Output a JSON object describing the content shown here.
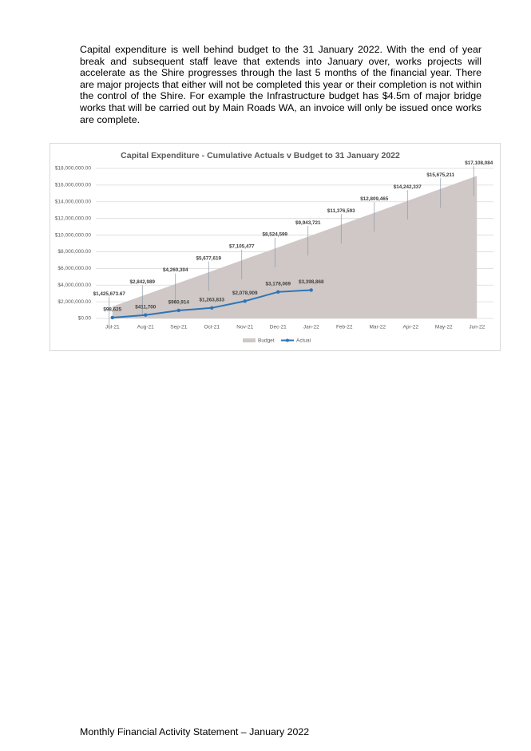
{
  "paragraph": "Capital expenditure is well behind budget to the 31 January 2022. With the end of year break and subsequent staff leave that extends into January over, works projects will accelerate as the Shire progresses through the last 5 months of the financial year. There are major projects that either will not be completed this year or their completion is not within the control of the Shire. For example the Infrastructure budget has $4.5m of major bridge works that will be carried out by Main Roads WA, an invoice will only be issued once works are complete.",
  "chart_data": {
    "type": "area",
    "title": "Capital Expenditure - Cumulative Actuals v Budget to 31 January 2022",
    "categories": [
      "Jul-21",
      "Aug-21",
      "Sep-21",
      "Oct-21",
      "Nov-21",
      "Dec-21",
      "Jan-22",
      "Feb-22",
      "Mar-22",
      "Apr-22",
      "May-22",
      "Jun-22"
    ],
    "series": [
      {
        "name": "Budget",
        "type": "area",
        "color": "#cfc8c7",
        "values": [
          1425673.67,
          2842989,
          4260304,
          5677619,
          7105477,
          8524599,
          9943721,
          11376593,
          12809465,
          14242337,
          15675211,
          17108084
        ],
        "value_labels": [
          "$1,425,673.67",
          "$2,842,989",
          "$4,260,304",
          "$5,677,619",
          "$7,105,477",
          "$8,524,599",
          "$9,943,721",
          "$11,376,593",
          "$12,809,465",
          "$14,242,337",
          "$15,675,211",
          "$17,108,084"
        ]
      },
      {
        "name": "Actual",
        "type": "line",
        "color": "#2e75b6",
        "values": [
          98625,
          411700,
          960914,
          1263833,
          2078909,
          3178069,
          3398868,
          null,
          null,
          null,
          null,
          null
        ],
        "value_labels": [
          "$98,625",
          "$411,700",
          "$960,914",
          "$1,263,833",
          "$2,078,909",
          "$3,178,069",
          "$3,398,868",
          null,
          null,
          null,
          null,
          null
        ]
      }
    ],
    "ylim": [
      0,
      18000000
    ],
    "yticks": [
      {
        "value": 0,
        "label": "$0.00"
      },
      {
        "value": 2000000,
        "label": "$2,000,000.00"
      },
      {
        "value": 4000000,
        "label": "$4,000,000.00"
      },
      {
        "value": 6000000,
        "label": "$6,000,000.00"
      },
      {
        "value": 8000000,
        "label": "$8,000,000.00"
      },
      {
        "value": 10000000,
        "label": "$10,000,000.00"
      },
      {
        "value": 12000000,
        "label": "$12,000,000.00"
      },
      {
        "value": 14000000,
        "label": "$14,000,000.00"
      },
      {
        "value": 16000000,
        "label": "$16,000,000.00"
      },
      {
        "value": 18000000,
        "label": "$18,000,000.00"
      }
    ],
    "grid": true,
    "legend": "bottom"
  },
  "footer": "Monthly Financial Activity Statement – January 2022"
}
